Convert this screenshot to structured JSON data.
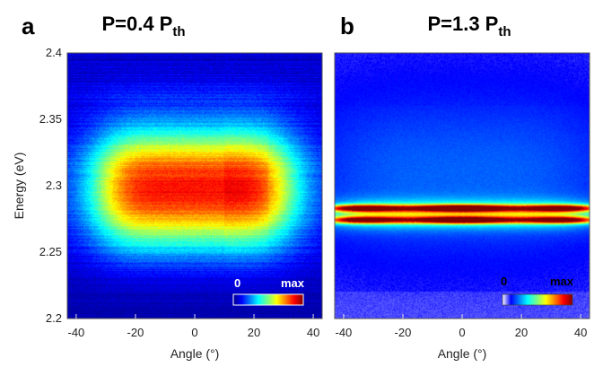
{
  "chart_data": [
    {
      "type": "heatmap",
      "panel": "a",
      "title": "P=0.4 P",
      "title_sub": "th",
      "xlabel": "Angle (°)",
      "ylabel": "Energy (eV)",
      "xlim": [
        -43,
        43
      ],
      "ylim": [
        2.2,
        2.4
      ],
      "xticks": [
        -40,
        -20,
        0,
        20,
        40
      ],
      "yticks": [
        2.2,
        2.25,
        2.3,
        2.35,
        2.4
      ],
      "colormap": "jet",
      "colorbar": {
        "min_label": "0",
        "max_label": "max",
        "label_color": "#ffffff"
      },
      "emission": {
        "center_energy": 2.298,
        "width_energy": 0.055,
        "angle_halfwidth": 33,
        "background": 0.08
      }
    },
    {
      "type": "heatmap",
      "panel": "b",
      "title": "P=1.3 P",
      "title_sub": "th",
      "xlabel": "Angle (°)",
      "ylabel": "",
      "xlim": [
        -43,
        43
      ],
      "ylim": [
        2.2,
        2.4
      ],
      "xticks": [
        -40,
        -20,
        0,
        20,
        40
      ],
      "yticks": [
        2.2,
        2.25,
        2.3,
        2.35,
        2.4
      ],
      "colormap": "white-jet",
      "colorbar": {
        "min_label": "0",
        "max_label": "max",
        "label_color": "#000000"
      },
      "emission": {
        "lasing_energies": [
          2.283,
          2.274
        ],
        "line_width": 0.0025,
        "broad_center": 2.31,
        "broad_width": 0.06
      }
    }
  ]
}
